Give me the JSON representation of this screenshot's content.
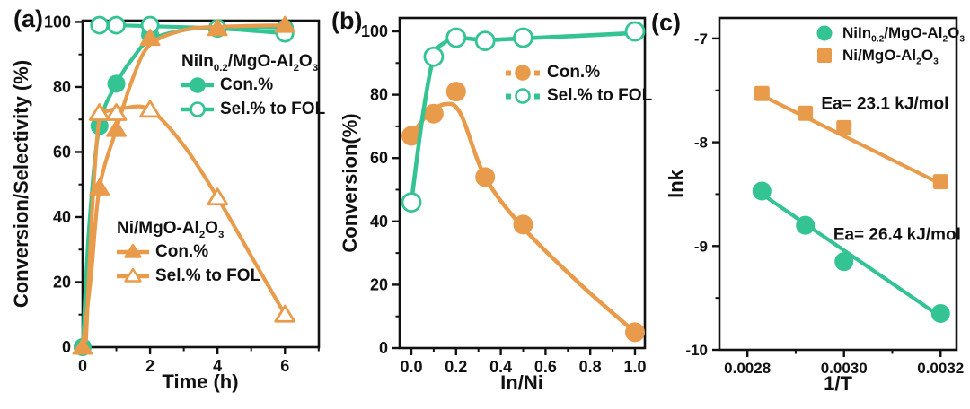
{
  "colors": {
    "green": "#34c393",
    "orange": "#e99b4c",
    "axis": "#111111",
    "text": "#111111",
    "background": "#ffffff"
  },
  "panels": [
    {
      "label": "(a)"
    },
    {
      "label": "(b)"
    },
    {
      "label": "(c)"
    }
  ],
  "chart_data": [
    {
      "id": "a",
      "type": "line",
      "title": "",
      "xlabel": "Time (h)",
      "ylabel": "Conversion/Selectivity (%)",
      "xlim": [
        0,
        7
      ],
      "ylim": [
        0,
        100
      ],
      "grid": false,
      "xticks": [
        0,
        2,
        4,
        6
      ],
      "xtick_labels": [
        "0",
        "2",
        "4",
        "6"
      ],
      "xminor": [
        1,
        3,
        5,
        7
      ],
      "yticks": [
        0,
        20,
        40,
        60,
        80,
        100
      ],
      "ytick_labels": [
        "0",
        "20",
        "40",
        "60",
        "80",
        "100"
      ],
      "yminor": [
        10,
        30,
        50,
        70,
        90
      ],
      "series": [
        {
          "name": "NiIn0.2/MgO-Al2O3 Con.%",
          "color": "green",
          "marker": "circle-solid",
          "marker_size": 9,
          "line_width": 4.2,
          "points": [
            [
              0,
              0
            ],
            [
              0.5,
              68
            ],
            [
              1,
              81
            ],
            [
              2,
              96
            ],
            [
              4,
              98
            ],
            [
              6,
              98
            ]
          ],
          "curve": [
            [
              0,
              0
            ],
            [
              0.2,
              38
            ],
            [
              0.5,
              68
            ],
            [
              1,
              81
            ],
            [
              1.5,
              89
            ],
            [
              2,
              94.5
            ],
            [
              3,
              97.5
            ],
            [
              4,
              98.3
            ],
            [
              6,
              98.3
            ]
          ]
        },
        {
          "name": "NiIn0.2/MgO-Al2O3 Sel.% to FOL",
          "color": "green",
          "marker": "circle-open",
          "marker_size": 9,
          "line_width": 4.2,
          "points": [
            [
              0.5,
              99
            ],
            [
              1,
              99
            ],
            [
              2,
              99
            ],
            [
              4,
              98
            ],
            [
              6,
              96.5
            ]
          ],
          "curve": [
            [
              0.5,
              99
            ],
            [
              1,
              99
            ],
            [
              2,
              98.7
            ],
            [
              4,
              98
            ],
            [
              6,
              96.5
            ]
          ]
        },
        {
          "name": "Ni/MgO-Al2O3 Con.%",
          "color": "orange",
          "marker": "triangle-solid",
          "marker_size": 10,
          "line_width": 4.2,
          "points": [
            [
              0,
              0
            ],
            [
              0.5,
              49
            ],
            [
              1,
              67
            ],
            [
              2,
              95
            ],
            [
              4,
              98
            ],
            [
              6,
              99
            ]
          ],
          "curve": [
            [
              0,
              0
            ],
            [
              0.25,
              22
            ],
            [
              0.5,
              49
            ],
            [
              1,
              67
            ],
            [
              1.5,
              83
            ],
            [
              2,
              93
            ],
            [
              3,
              97.5
            ],
            [
              4,
              98.5
            ],
            [
              6,
              99
            ]
          ]
        },
        {
          "name": "Ni/MgO-Al2O3 Sel.% to FOL",
          "color": "orange",
          "marker": "triangle-open",
          "marker_size": 10,
          "line_width": 4.2,
          "points": [
            [
              0.5,
              72
            ],
            [
              1,
              72
            ],
            [
              2,
              73
            ],
            [
              4,
              46
            ],
            [
              6,
              10
            ]
          ],
          "curve": [
            [
              0.1,
              2
            ],
            [
              0.3,
              45
            ],
            [
              0.5,
              71
            ],
            [
              0.7,
              72.5
            ],
            [
              1.2,
              73.5
            ],
            [
              2,
              73
            ],
            [
              3,
              62
            ],
            [
              4,
              46
            ],
            [
              5,
              28
            ],
            [
              6,
              10
            ]
          ]
        }
      ],
      "legends": [
        {
          "title": "NiIn_{0.2}/MgO-Al_{2}O_{3}",
          "position": "upper-right-inside",
          "items": [
            {
              "icon": "line-circle-solid",
              "color": "green",
              "label": "Con.%"
            },
            {
              "icon": "line-circle-open",
              "color": "green",
              "label": "Sel.% to FOL"
            }
          ]
        },
        {
          "title": "Ni/MgO-Al_{2}O_{3}",
          "position": "lower-middle-inside",
          "items": [
            {
              "icon": "line-triangle-solid",
              "color": "orange",
              "label": "Con.%"
            },
            {
              "icon": "line-triangle-open",
              "color": "orange",
              "label": "Sel.% to FOL"
            }
          ]
        }
      ],
      "annotations": []
    },
    {
      "id": "b",
      "type": "line",
      "title": "",
      "xlabel": "In/Ni",
      "ylabel": "Conversion(%)",
      "xlim": [
        0,
        1.0
      ],
      "ylim": [
        0,
        100
      ],
      "grid": false,
      "xticks": [
        0,
        0.2,
        0.4,
        0.6,
        0.8,
        1.0
      ],
      "xtick_labels": [
        "0.0",
        "0.2",
        "0.4",
        "0.6",
        "0.8",
        "1.0"
      ],
      "xminor": [
        0.1,
        0.3,
        0.5,
        0.7,
        0.9
      ],
      "yticks": [
        0,
        20,
        40,
        60,
        80,
        100
      ],
      "ytick_labels": [
        "0",
        "20",
        "40",
        "60",
        "80",
        "100"
      ],
      "yminor": [
        10,
        30,
        50,
        70,
        90
      ],
      "series": [
        {
          "name": "Con.%",
          "color": "orange",
          "marker": "circle-solid",
          "marker_size": 10,
          "line_width": 4.6,
          "points": [
            [
              0,
              67
            ],
            [
              0.1,
              74
            ],
            [
              0.2,
              81
            ],
            [
              0.33,
              54
            ],
            [
              0.5,
              39
            ],
            [
              1,
              5
            ]
          ],
          "curve": [
            [
              0,
              67
            ],
            [
              0.07,
              73.5
            ],
            [
              0.15,
              77
            ],
            [
              0.22,
              74
            ],
            [
              0.33,
              54
            ],
            [
              0.5,
              38
            ],
            [
              0.75,
              20.5
            ],
            [
              1,
              5
            ]
          ]
        },
        {
          "name": "Sel.% to FOL",
          "color": "green",
          "marker": "circle-open",
          "marker_size": 10,
          "line_width": 4.6,
          "points": [
            [
              0,
              46
            ],
            [
              0.1,
              92
            ],
            [
              0.2,
              98
            ],
            [
              0.33,
              97
            ],
            [
              0.5,
              98
            ],
            [
              1,
              100
            ]
          ],
          "curve": [
            [
              0,
              46
            ],
            [
              0.05,
              73
            ],
            [
              0.1,
              92
            ],
            [
              0.15,
              96.5
            ],
            [
              0.2,
              98
            ],
            [
              0.33,
              97.3
            ],
            [
              0.5,
              97.8
            ],
            [
              0.75,
              98.6
            ],
            [
              1,
              99.5
            ]
          ]
        }
      ],
      "legends": [
        {
          "title": "",
          "position": "middle-right-inside",
          "items": [
            {
              "icon": "dash-circle-solid",
              "color": "orange",
              "label": "Con.%"
            },
            {
              "icon": "dash-circle-open",
              "color": "green",
              "label": "Sel.% to FOL"
            }
          ]
        }
      ],
      "annotations": []
    },
    {
      "id": "c",
      "type": "scatter",
      "title": "",
      "xlabel": "1/T",
      "ylabel": "lnk",
      "xlim": [
        0.00274,
        0.00323
      ],
      "ylim": [
        -10,
        -6.8
      ],
      "grid": false,
      "xticks": [
        0.0028,
        0.003,
        0.0032
      ],
      "xtick_labels": [
        "0.0028",
        "0.0030",
        "0.0032"
      ],
      "xminor": [
        0.0029,
        0.0031
      ],
      "yticks": [
        -7,
        -8,
        -9,
        -10
      ],
      "ytick_labels": [
        "-7",
        "-8",
        "-9",
        "-10"
      ],
      "yminor": [
        -7.5,
        -8.5,
        -9.5
      ],
      "series": [
        {
          "name": "Ni/MgO-Al2O3",
          "color": "orange",
          "marker": "square-solid",
          "marker_size": 15,
          "line_width": 4.2,
          "points": [
            [
              0.00283,
              -7.53
            ],
            [
              0.00292,
              -7.72
            ],
            [
              0.003,
              -7.86
            ],
            [
              0.0032,
              -8.38
            ]
          ],
          "fit": [
            [
              0.00283,
              -7.55
            ],
            [
              0.0032,
              -8.4
            ]
          ]
        },
        {
          "name": "NiIn0.2/MgO-Al2O3",
          "color": "green",
          "marker": "circle-solid",
          "marker_size": 9.5,
          "line_width": 4.2,
          "points": [
            [
              0.00283,
              -8.47
            ],
            [
              0.00292,
              -8.8
            ],
            [
              0.003,
              -9.15
            ],
            [
              0.0032,
              -9.65
            ]
          ],
          "fit": [
            [
              0.00283,
              -8.5
            ],
            [
              0.0032,
              -9.68
            ]
          ]
        }
      ],
      "legends": [
        {
          "title": "",
          "position": "upper-right-inside",
          "items": [
            {
              "icon": "circle",
              "color": "green",
              "label": "NiIn_{0.2}/MgO-Al_{2}O_{3}"
            },
            {
              "icon": "square",
              "color": "orange",
              "label": "Ni/MgO-Al_{2}O_{3}"
            }
          ]
        }
      ],
      "annotations": [
        {
          "text": "Ea= 23.1 kJ/mol",
          "x": 0.003085,
          "y": -7.68
        },
        {
          "text": "Ea= 26.4 kJ/mol",
          "x": 0.00311,
          "y": -8.94
        }
      ]
    }
  ]
}
